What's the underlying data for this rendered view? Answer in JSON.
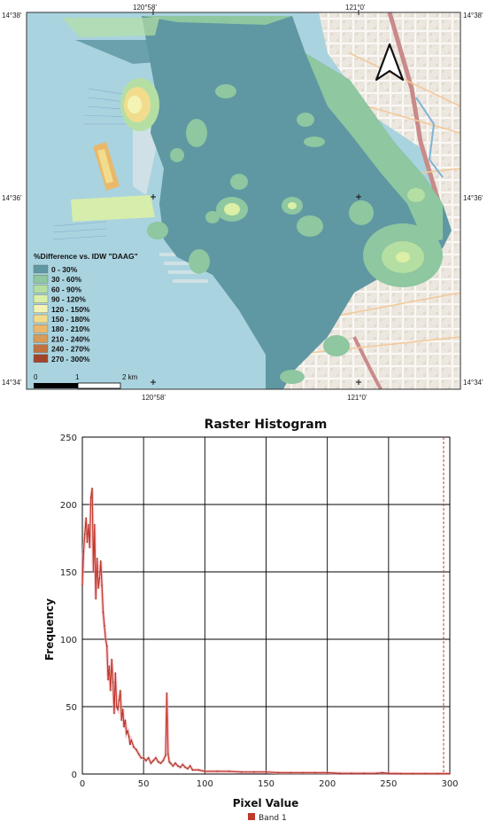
{
  "map": {
    "coords": {
      "top_left_lon": "120°58'",
      "top_right_lon": "121°0'",
      "bottom_left_lon": "120°58'",
      "bottom_right_lon": "121°0'",
      "left_top_lat": "14°38'",
      "left_mid_lat": "14°36'",
      "left_bottom_lat": "14°34'",
      "right_top_lat": "14°38'",
      "right_mid_lat": "14°36'",
      "right_bottom_lat": "14°34'"
    },
    "legend": {
      "title": "%Difference vs. IDW \"DAAG\"",
      "items": [
        {
          "label": "0 - 30%",
          "color": "#5f98a3"
        },
        {
          "label": "30 - 60%",
          "color": "#8ec7a0"
        },
        {
          "label": "60 - 90%",
          "color": "#b5dfa2"
        },
        {
          "label": "90 - 120%",
          "color": "#dcefa6"
        },
        {
          "label": "120 - 150%",
          "color": "#f3f4b4"
        },
        {
          "label": "150 - 180%",
          "color": "#f1dc8e"
        },
        {
          "label": "180 - 210%",
          "color": "#e9b86b"
        },
        {
          "label": "210 - 240%",
          "color": "#d89b57"
        },
        {
          "label": "240 - 270%",
          "color": "#c0723f"
        },
        {
          "label": "270 - 300%",
          "color": "#a2442b"
        }
      ]
    },
    "scale_bar": {
      "labels": [
        "0",
        "1",
        "2 km"
      ]
    },
    "north_arrow_icon": "north-arrow-icon",
    "colors": {
      "sea": "#a9d3df",
      "land": "#ebe6de",
      "roads": "#f3c99a",
      "interp_base": "#5f98a3"
    }
  },
  "chart_data": {
    "type": "line",
    "title": "Raster Histogram",
    "xlabel": "Pixel Value",
    "ylabel": "Frequency",
    "xlim": [
      0,
      300
    ],
    "ylim": [
      0,
      250
    ],
    "x_ticks": [
      0,
      50,
      100,
      150,
      200,
      250,
      300
    ],
    "y_ticks": [
      0,
      50,
      100,
      150,
      200,
      250
    ],
    "grid": true,
    "legend": {
      "placement": "bottom-center"
    },
    "series": [
      {
        "name": "Band 1",
        "color": "#c0392b",
        "x": [
          0,
          1,
          2,
          3,
          4,
          5,
          6,
          7,
          8,
          9,
          10,
          11,
          12,
          13,
          14,
          15,
          16,
          17,
          18,
          19,
          20,
          21,
          22,
          23,
          24,
          25,
          26,
          27,
          28,
          29,
          30,
          31,
          32,
          33,
          34,
          35,
          36,
          37,
          38,
          39,
          40,
          42,
          44,
          46,
          48,
          50,
          52,
          54,
          56,
          58,
          60,
          62,
          64,
          66,
          68,
          69,
          70,
          71,
          72,
          74,
          76,
          78,
          80,
          82,
          84,
          86,
          88,
          90,
          95,
          100,
          110,
          120,
          130,
          140,
          150,
          160,
          170,
          180,
          190,
          200,
          210,
          220,
          230,
          240,
          245,
          250,
          260,
          270,
          280,
          290,
          300
        ],
        "values": [
          140,
          165,
          178,
          190,
          172,
          185,
          168,
          205,
          212,
          150,
          185,
          130,
          160,
          138,
          145,
          158,
          140,
          120,
          110,
          100,
          95,
          70,
          80,
          62,
          85,
          68,
          45,
          75,
          50,
          48,
          55,
          62,
          40,
          48,
          35,
          40,
          30,
          32,
          28,
          22,
          25,
          20,
          18,
          15,
          12,
          12,
          10,
          12,
          8,
          10,
          12,
          9,
          8,
          10,
          14,
          60,
          15,
          9,
          8,
          6,
          8,
          6,
          5,
          7,
          5,
          4,
          6,
          3,
          3,
          2,
          2,
          2,
          1.5,
          1.5,
          1.5,
          1,
          1,
          1,
          1,
          1,
          0.5,
          0.5,
          0.5,
          0.5,
          1,
          0.5,
          0.3,
          0.3,
          0.3,
          0.3,
          0.3
        ]
      }
    ]
  }
}
